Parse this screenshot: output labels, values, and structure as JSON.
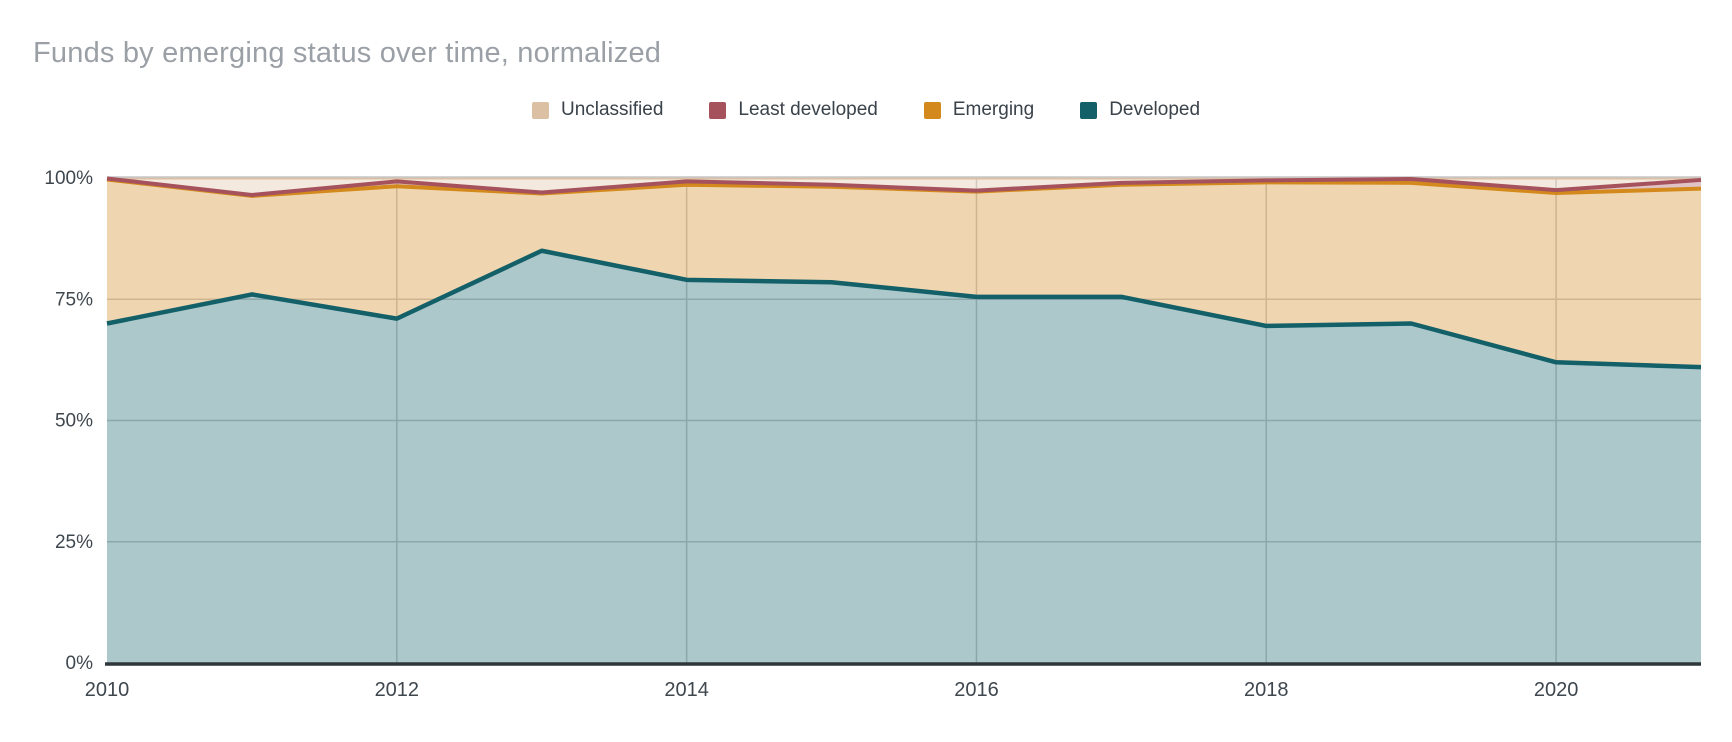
{
  "title": "Funds by emerging status over time, normalized",
  "legend": {
    "position": "top",
    "items": [
      {
        "label": "Unclassified",
        "color": "#dcc0a4"
      },
      {
        "label": "Least developed",
        "color": "#a5525d"
      },
      {
        "label": "Emerging",
        "color": "#d3891c"
      },
      {
        "label": "Developed",
        "color": "#136069"
      }
    ]
  },
  "axes": {
    "y_ticks": [
      {
        "label": "100%",
        "value": 100
      },
      {
        "label": "75%",
        "value": 75
      },
      {
        "label": "50%",
        "value": 50
      },
      {
        "label": "25%",
        "value": 25
      },
      {
        "label": "0%",
        "value": 0
      }
    ],
    "x_ticks": [
      {
        "label": "2010",
        "index": 0
      },
      {
        "label": "2012",
        "index": 2
      },
      {
        "label": "2014",
        "index": 4
      },
      {
        "label": "2016",
        "index": 6
      },
      {
        "label": "2018",
        "index": 8
      },
      {
        "label": "2020",
        "index": 10
      }
    ]
  },
  "chart_data": {
    "type": "area",
    "stacked": true,
    "normalized": true,
    "title": "Funds by emerging status over time, normalized",
    "xlabel": "",
    "ylabel": "",
    "ylim": [
      0,
      100
    ],
    "grid": true,
    "legend_position": "top",
    "fill_opacity": 0.35,
    "x": [
      2010,
      2011,
      2012,
      2013,
      2014,
      2015,
      2016,
      2017,
      2018,
      2019,
      2020,
      2021
    ],
    "stack_order_note": "series listed bottom-to-top of the stack; legend shows reverse order",
    "series": [
      {
        "name": "Developed",
        "color": "#136069",
        "values": [
          70.0,
          76.0,
          71.0,
          85.0,
          79.0,
          78.5,
          75.5,
          75.5,
          69.5,
          70.0,
          62.0,
          61.0
        ]
      },
      {
        "name": "Emerging",
        "color": "#d3891c",
        "values": [
          29.7,
          20.3,
          27.3,
          11.8,
          19.6,
          19.7,
          21.7,
          23.1,
          29.6,
          29.0,
          34.9,
          36.8
        ]
      },
      {
        "name": "Least developed",
        "color": "#a5525d",
        "values": [
          0.2,
          0.2,
          1.0,
          0.2,
          0.7,
          0.4,
          0.2,
          0.4,
          0.4,
          0.8,
          0.6,
          1.8
        ]
      },
      {
        "name": "Unclassified",
        "color": "#dcc0a4",
        "values": [
          0.1,
          3.5,
          0.7,
          3.0,
          0.7,
          1.4,
          2.6,
          1.0,
          0.5,
          0.2,
          2.5,
          0.4
        ]
      }
    ]
  },
  "style": {
    "background": "#ffffff",
    "title_color": "#9aa0a6",
    "tick_color": "#3f474e",
    "legend_text_color": "#3a424a",
    "gridline_color": "#cccccc",
    "axis_line_color": "#2f3639"
  }
}
